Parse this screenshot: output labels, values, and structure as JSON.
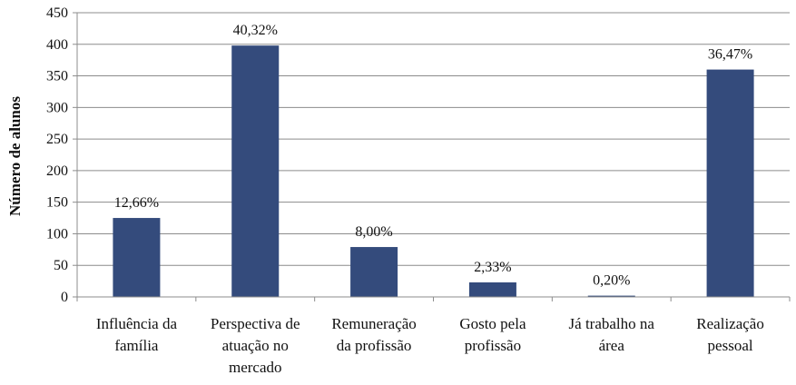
{
  "chart_data": {
    "type": "bar",
    "title": "",
    "xlabel": "",
    "ylabel": "Número de alunos",
    "ylim": [
      0,
      450
    ],
    "yticks": [
      0,
      50,
      100,
      150,
      200,
      250,
      300,
      350,
      400,
      450
    ],
    "grid": true,
    "legend": "none",
    "bar_color": "#344B7C",
    "categories": [
      [
        "Influência da",
        "família"
      ],
      [
        "Perspectiva de",
        "atuação no",
        "mercado"
      ],
      [
        "Remuneração",
        "da profissão"
      ],
      [
        "Gosto pela",
        "profissão"
      ],
      [
        "Já trabalho na",
        "área"
      ],
      [
        "Realização",
        "pessoal"
      ]
    ],
    "values": [
      125,
      398,
      79,
      23,
      2,
      360
    ],
    "data_labels": [
      "12,66%",
      "40,32%",
      "8,00%",
      "2,33%",
      "0,20%",
      "36,47%"
    ]
  }
}
